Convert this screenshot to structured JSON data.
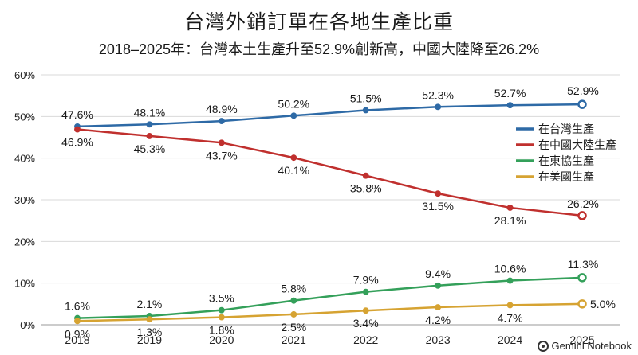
{
  "chart_data": {
    "type": "line",
    "title": "台灣外銷訂單在各地生產比重",
    "subtitle": "2018–2025年：台灣本土生產升至52.9%創新高，中國大陸降至26.2%",
    "categories": [
      "2018",
      "2019",
      "2020",
      "2021",
      "2022",
      "2023",
      "2024",
      "2025"
    ],
    "y_ticks": [
      "0%",
      "10%",
      "20%",
      "30%",
      "40%",
      "50%",
      "60%"
    ],
    "ylim": [
      0,
      60
    ],
    "grid": "horizontal",
    "legend_position": "right",
    "series": [
      {
        "name": "在台灣生產",
        "color": "#2e6aa6",
        "values": [
          47.6,
          48.1,
          48.9,
          50.2,
          51.5,
          52.3,
          52.7,
          52.9
        ],
        "labels": [
          "47.6%",
          "48.1%",
          "48.9%",
          "50.2%",
          "51.5%",
          "52.3%",
          "52.7%",
          "52.9%"
        ],
        "label_pos": "above"
      },
      {
        "name": "在中國大陸生產",
        "color": "#c0302e",
        "values": [
          46.9,
          45.3,
          43.7,
          40.1,
          35.8,
          31.5,
          28.1,
          26.2
        ],
        "labels": [
          "46.9%",
          "45.3%",
          "43.7%",
          "40.1%",
          "35.8%",
          "31.5%",
          "28.1%",
          "26.2%"
        ],
        "label_pos": "below"
      },
      {
        "name": "在東協生產",
        "color": "#34a05a",
        "values": [
          1.6,
          2.1,
          3.5,
          5.8,
          7.9,
          9.4,
          10.6,
          11.3
        ],
        "labels": [
          "1.6%",
          "2.1%",
          "3.5%",
          "5.8%",
          "7.9%",
          "9.4%",
          "10.6%",
          "11.3%"
        ],
        "label_pos": "above"
      },
      {
        "name": "在美國生產",
        "color": "#d6a332",
        "values": [
          0.9,
          1.3,
          1.8,
          2.5,
          3.4,
          4.2,
          4.7,
          5.0
        ],
        "labels": [
          "0.9%",
          "1.3%",
          "1.8%",
          "2.5%",
          "3.4%",
          "4.2%",
          "4.7%",
          "5.0%"
        ],
        "label_pos": "below"
      }
    ]
  },
  "watermark": "Gemini Notebook"
}
